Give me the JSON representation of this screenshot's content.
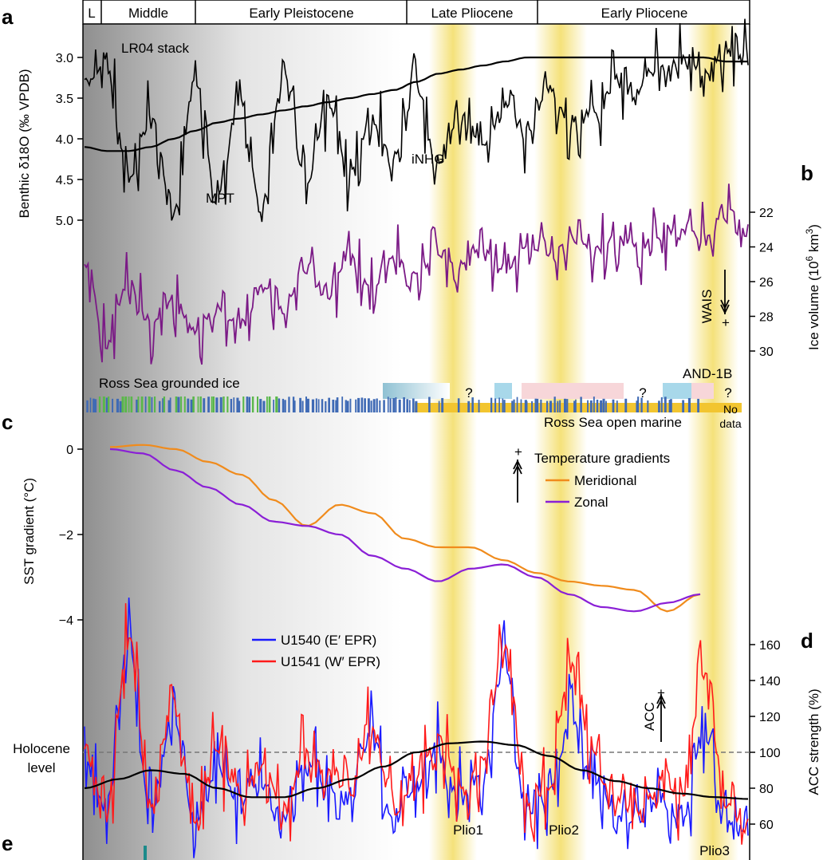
{
  "colors": {
    "black": "#000000",
    "purple": "#7b1a86",
    "orange": "#f08b1c",
    "violet": "#8a1fd6",
    "blue": "#1a1aff",
    "red": "#ff1a1a",
    "yellow_band": "#f3dc63",
    "grounded_ice_green": "#5ab84a",
    "open_marine_yellow": "#f2c530",
    "barcode_blue": "#3f6ab5",
    "box_blue": "#a8d8ea",
    "box_pink": "#f7d6d9",
    "holocene_line": "#777777"
  },
  "epochs": [
    "L",
    "Middle",
    "Early Pleistocene",
    "Late Pliocene",
    "Early Pliocene"
  ],
  "panels": {
    "a": "a",
    "b": "b",
    "c": "c",
    "d": "d",
    "e": "e"
  },
  "bands": [
    "Plio1",
    "Plio2",
    "Plio3"
  ],
  "chart_data": [
    {
      "type": "line",
      "panel": "a",
      "title": "LR04 stack",
      "ylabel": "Benthic δ18O (‰ VPDB)",
      "yticks": [
        "3.0",
        "3.5",
        "4.0",
        "4.5",
        "5.0"
      ],
      "y_reversed": true,
      "annotations": [
        "MPT",
        "iNHG"
      ],
      "series": [
        {
          "role": "record",
          "values": [
            3.3,
            3.1,
            4.5,
            3.7,
            4.9,
            3.3,
            4.7,
            3.5,
            4.8,
            3.2,
            4.6,
            3.6,
            4.4,
            3.8,
            4.2,
            3.4,
            4.3,
            3.7,
            4.1,
            3.6,
            3.9,
            3.4,
            3.8,
            3.7,
            3.3,
            3.4,
            3.1,
            3.0,
            3.2,
            2.9,
            3.0
          ]
        },
        {
          "role": "smoothed",
          "values": [
            4.1,
            4.15,
            4.15,
            4.1,
            4.0,
            3.9,
            3.8,
            3.75,
            3.7,
            3.65,
            3.6,
            3.55,
            3.5,
            3.45,
            3.4,
            3.3,
            3.2,
            3.15,
            3.1,
            3.05,
            3.0,
            3.0,
            3.0,
            3.0,
            3.0,
            3.0,
            3.0,
            3.0,
            3.0,
            3.05,
            3.05
          ]
        }
      ]
    },
    {
      "type": "line",
      "panel": "b",
      "ylabel": "Ice volume (10^6 km^3)",
      "yticks": [
        "22",
        "24",
        "26",
        "28",
        "30"
      ],
      "y_reversed": true,
      "annotations": [
        "WAIS",
        "+",
        "AND-1B",
        "Ross Sea grounded ice",
        "Ross Sea open marine",
        "No",
        "data",
        "?"
      ],
      "series": [
        {
          "role": "record",
          "values": [
            25.0,
            29.5,
            26.0,
            28.5,
            27.0,
            29.0,
            27.5,
            28.5,
            26.0,
            27.5,
            25.5,
            27.0,
            24.5,
            26.5,
            24.5,
            25.5,
            24.5,
            25.0,
            24.0,
            25.5,
            24.0,
            24.5,
            23.5,
            24.0,
            23.5,
            24.0,
            23.5,
            23.0,
            23.5,
            21.5,
            23.5
          ]
        }
      ]
    },
    {
      "type": "line",
      "panel": "c",
      "ylabel": "SST gradient (°C)",
      "yticks": [
        "0",
        "−2",
        "−4"
      ],
      "legend_title": "Temperature gradients",
      "legend_position": "top-right",
      "series": [
        {
          "name": "Meridional",
          "values": [
            0.05,
            0.1,
            0.0,
            -0.3,
            -0.6,
            -1.2,
            -1.8,
            -1.3,
            -1.5,
            -2.1,
            -2.3,
            -2.3,
            -2.6,
            -2.9,
            -3.1,
            -3.2,
            -3.3,
            -3.8,
            -3.4
          ]
        },
        {
          "name": "Zonal",
          "values": [
            0.0,
            -0.1,
            -0.5,
            -0.9,
            -1.3,
            -1.7,
            -1.8,
            -2.0,
            -2.5,
            -2.8,
            -3.1,
            -2.8,
            -2.7,
            -3.0,
            -3.4,
            -3.7,
            -3.8,
            -3.6,
            -3.4
          ]
        }
      ]
    },
    {
      "type": "line",
      "panel": "d",
      "ylabel": "ACC strength (%)",
      "yticks": [
        "60",
        "80",
        "100",
        "120",
        "140",
        "160"
      ],
      "ylim": [
        50,
        170
      ],
      "legend_position": "top-left",
      "reference_line": {
        "label": "Holocene level",
        "value": 100
      },
      "annotations": [
        "ACC",
        "+"
      ],
      "series": [
        {
          "name": "U1540 (E′ EPR)",
          "values": [
            95,
            70,
            160,
            65,
            120,
            60,
            90,
            70,
            85,
            65,
            95,
            80,
            70,
            110,
            60,
            80,
            100,
            75,
            90,
            150,
            65,
            75,
            120,
            85,
            65,
            60,
            75,
            60,
            110,
            60,
            55
          ]
        },
        {
          "name": "U1541 (W′ EPR)",
          "values": [
            105,
            65,
            165,
            70,
            130,
            62,
            100,
            75,
            95,
            70,
            100,
            90,
            75,
            115,
            65,
            85,
            110,
            80,
            95,
            160,
            70,
            80,
            150,
            100,
            70,
            65,
            85,
            75,
            145,
            70,
            60
          ]
        },
        {
          "role": "smoothed",
          "values": [
            80,
            85,
            90,
            88,
            80,
            75,
            75,
            80,
            85,
            92,
            100,
            105,
            106,
            104,
            98,
            90,
            84,
            80,
            77,
            75,
            74
          ]
        }
      ]
    }
  ]
}
